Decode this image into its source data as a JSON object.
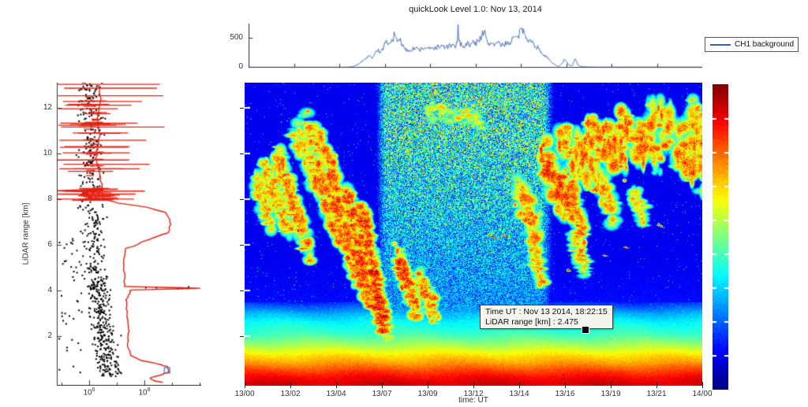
{
  "title": "quickLook Level 1.0: Nov 13, 2014",
  "top_chart": {
    "legend": "CH1 background",
    "yticks": [
      "0",
      "500"
    ],
    "line_color": "#3a5fb0"
  },
  "left_chart": {
    "ylabel": "LiDAR range [km]",
    "ytick_values": [
      "2",
      "4",
      "6",
      "8",
      "10",
      "12"
    ],
    "xticks": [
      {
        "base": "10",
        "exp": "6"
      },
      {
        "base": "10",
        "exp": "8"
      }
    ],
    "dot_color": "#000000",
    "profile_color": "#e82010",
    "marker_color": "#5577cc"
  },
  "heatmap": {
    "xlabel": "time: UT",
    "xtick_labels": [
      "13/00",
      "13/02",
      "13/04",
      "13/07",
      "13/09",
      "13/12",
      "13/14",
      "13/16",
      "13/19",
      "13/21",
      "14/00"
    ],
    "tooltip": {
      "line1": "Time UT : Nov 13 2014, 18:22:15",
      "line2": "LiDAR range [km] : 2.475"
    }
  },
  "colorbar": {
    "colormap": "jet"
  },
  "chart_data": [
    {
      "type": "line",
      "title": "quickLook Level 1.0: Nov 13, 2014",
      "legend": [
        "CH1 background"
      ],
      "x_unit": "hours UT starting Nov 13 2014 00:00",
      "x_range_hours": [
        0,
        24
      ],
      "yticks": [
        0,
        500
      ],
      "ylim": [
        0,
        800
      ],
      "grid": false,
      "legend_position": "outside-right",
      "points_t_v": [
        [
          0,
          2
        ],
        [
          5.2,
          2
        ],
        [
          5.5,
          12
        ],
        [
          5.8,
          55
        ],
        [
          6.1,
          140
        ],
        [
          6.35,
          200
        ],
        [
          6.5,
          160
        ],
        [
          6.65,
          240
        ],
        [
          6.8,
          300
        ],
        [
          6.95,
          250
        ],
        [
          7.1,
          330
        ],
        [
          7.25,
          420
        ],
        [
          7.4,
          370
        ],
        [
          7.55,
          450
        ],
        [
          7.7,
          555
        ],
        [
          7.8,
          480
        ],
        [
          7.9,
          430
        ],
        [
          8.0,
          520
        ],
        [
          8.1,
          380
        ],
        [
          8.25,
          300
        ],
        [
          8.4,
          290
        ],
        [
          8.6,
          310
        ],
        [
          8.8,
          330
        ],
        [
          9.0,
          300
        ],
        [
          9.2,
          320
        ],
        [
          9.4,
          340
        ],
        [
          9.6,
          310
        ],
        [
          9.8,
          330
        ],
        [
          10.0,
          345
        ],
        [
          10.2,
          360
        ],
        [
          10.4,
          340
        ],
        [
          10.6,
          365
        ],
        [
          10.8,
          350
        ],
        [
          10.95,
          380
        ],
        [
          11.02,
          420
        ],
        [
          11.06,
          730
        ],
        [
          11.12,
          430
        ],
        [
          11.25,
          390
        ],
        [
          11.4,
          360
        ],
        [
          11.55,
          410
        ],
        [
          11.7,
          380
        ],
        [
          11.85,
          440
        ],
        [
          12.0,
          400
        ],
        [
          12.15,
          480
        ],
        [
          12.3,
          530
        ],
        [
          12.45,
          640
        ],
        [
          12.55,
          450
        ],
        [
          12.7,
          390
        ],
        [
          12.85,
          430
        ],
        [
          13.0,
          400
        ],
        [
          13.15,
          420
        ],
        [
          13.3,
          390
        ],
        [
          13.45,
          360
        ],
        [
          13.6,
          440
        ],
        [
          13.75,
          400
        ],
        [
          13.9,
          470
        ],
        [
          14.05,
          520
        ],
        [
          14.2,
          480
        ],
        [
          14.35,
          610
        ],
        [
          14.5,
          640
        ],
        [
          14.65,
          560
        ],
        [
          14.8,
          470
        ],
        [
          15.0,
          420
        ],
        [
          15.2,
          360
        ],
        [
          15.4,
          290
        ],
        [
          15.6,
          220
        ],
        [
          15.8,
          150
        ],
        [
          16.0,
          90
        ],
        [
          16.2,
          40
        ],
        [
          16.4,
          15
        ],
        [
          16.55,
          70
        ],
        [
          16.7,
          130
        ],
        [
          16.9,
          40
        ],
        [
          17.1,
          25
        ],
        [
          17.25,
          150
        ],
        [
          17.4,
          40
        ],
        [
          17.6,
          10
        ],
        [
          18.0,
          4
        ],
        [
          24,
          3
        ]
      ]
    },
    {
      "type": "scatter",
      "ylabel": "LiDAR range [km]",
      "ylim_km": [
        0,
        13.4
      ],
      "x_scale": "log10",
      "xtick_values": [
        1000000,
        100000000
      ],
      "black_dots": {
        "description": "raw signal samples",
        "count": 700,
        "log10_center_high_alt": 6.03,
        "log10_center_mid_alt": 6.22,
        "log10_center_low_alt": 6.6,
        "log10_spread": 0.4
      },
      "red_errorbars": {
        "z_range_km": [
          7.9,
          13.2
        ],
        "count": 42,
        "log10_center": 6.2
      },
      "red_profile_z_log10": [
        [
          13.0,
          6.35
        ],
        [
          12.4,
          6.42
        ],
        [
          11.5,
          6.3
        ],
        [
          10.8,
          6.38
        ],
        [
          10.2,
          6.28
        ],
        [
          9.8,
          6.26
        ],
        [
          9.2,
          6.36
        ],
        [
          8.8,
          6.42
        ],
        [
          8.45,
          6.49
        ],
        [
          8.37,
          4.8
        ],
        [
          8.3,
          6.45
        ],
        [
          8.0,
          6.54
        ],
        [
          7.83,
          7.05
        ],
        [
          7.66,
          8.05
        ],
        [
          7.41,
          8.77
        ],
        [
          7.1,
          8.92
        ],
        [
          6.9,
          8.94
        ],
        [
          6.55,
          8.89
        ],
        [
          6.38,
          8.49
        ],
        [
          6.1,
          7.86
        ],
        [
          5.97,
          7.69
        ],
        [
          5.83,
          7.29
        ],
        [
          5.4,
          7.27
        ],
        [
          5.0,
          7.26
        ],
        [
          4.5,
          7.28
        ],
        [
          4.18,
          7.29
        ],
        [
          4.1,
          10.05
        ],
        [
          4.02,
          7.49
        ],
        [
          3.86,
          7.46
        ],
        [
          3.6,
          7.34
        ],
        [
          3.2,
          7.36
        ],
        [
          2.9,
          7.37
        ],
        [
          2.5,
          7.41
        ],
        [
          2.2,
          7.43
        ],
        [
          1.9,
          7.4
        ],
        [
          1.55,
          7.4
        ],
        [
          1.14,
          7.51
        ],
        [
          0.93,
          7.91
        ],
        [
          0.79,
          8.49
        ],
        [
          0.66,
          8.83
        ],
        [
          0.45,
          8.89
        ],
        [
          0.31,
          8.63
        ],
        [
          0.17,
          8.2
        ],
        [
          0.05,
          8.34
        ],
        [
          -0.05,
          8.77
        ]
      ],
      "blue_square_marker": {
        "log10": 8.82,
        "z_km": 0.5
      }
    },
    {
      "type": "heatmap",
      "xlabel": "time: UT",
      "x_range": [
        "13/00",
        "14/00"
      ],
      "xtick_labels": [
        "13/00",
        "13/02",
        "13/04",
        "13/07",
        "13/09",
        "13/12",
        "13/14",
        "13/16",
        "13/19",
        "13/21",
        "14/00"
      ],
      "ylim_km": [
        0,
        13.3
      ],
      "colormap": "jet",
      "day_noise": {
        "t0": 6.6,
        "t1": 15.5,
        "rise_h": 0.9,
        "fall_h": 1.0
      },
      "boundary_layer_stops_z_v": [
        [
          3.5,
          0.16
        ],
        [
          3.0,
          0.3
        ],
        [
          2.6,
          0.38
        ],
        [
          2.1,
          0.44
        ],
        [
          1.8,
          0.5
        ],
        [
          1.45,
          0.58
        ],
        [
          1.15,
          0.66
        ],
        [
          0.85,
          0.72
        ],
        [
          0.55,
          0.8
        ],
        [
          0.25,
          0.87
        ],
        [
          0.0,
          0.91
        ]
      ],
      "clouds_t0_z0_t1_z1_w_i_d": [
        [
          0.6,
          8.8,
          1.3,
          7.0,
          0.7,
          0.8,
          1
        ],
        [
          1.0,
          9.4,
          2.3,
          6.6,
          0.7,
          0.85,
          1
        ],
        [
          1.7,
          9.9,
          3.3,
          5.8,
          0.8,
          0.9,
          1
        ],
        [
          2.6,
          10.9,
          3.7,
          9.3,
          0.8,
          0.8,
          1
        ],
        [
          3.2,
          11.3,
          4.7,
          9.1,
          0.9,
          0.9,
          1
        ],
        [
          3.5,
          9.4,
          5.3,
          6.2,
          0.8,
          0.9,
          1
        ],
        [
          4.5,
          9.0,
          5.9,
          4.6,
          0.8,
          0.92,
          1
        ],
        [
          5.3,
          8.4,
          6.5,
          3.6,
          0.7,
          0.95,
          1
        ],
        [
          6.1,
          7.6,
          7.1,
          3.0,
          0.6,
          0.95,
          1
        ],
        [
          6.7,
          5.0,
          7.35,
          2.4,
          0.45,
          1.0,
          1.2
        ],
        [
          7.35,
          3.4,
          7.5,
          1.8,
          0.3,
          0.7,
          0.8
        ],
        [
          8.0,
          5.6,
          9.0,
          3.0,
          0.65,
          0.95,
          1
        ],
        [
          9.1,
          4.7,
          10.0,
          2.9,
          0.55,
          0.9,
          1
        ],
        [
          9.7,
          11.9,
          12.4,
          11.4,
          0.5,
          0.78,
          0.35
        ],
        [
          14.3,
          8.5,
          15.3,
          6.6,
          0.9,
          0.88,
          1
        ],
        [
          15.6,
          9.7,
          17.0,
          7.7,
          1.3,
          0.95,
          1
        ],
        [
          16.4,
          10.5,
          18.3,
          9.2,
          1.3,
          0.9,
          1
        ],
        [
          16.9,
          8.8,
          17.7,
          6.5,
          0.8,
          0.9,
          1
        ],
        [
          18.0,
          11.0,
          20.0,
          9.6,
          1.2,
          0.9,
          1
        ],
        [
          18.5,
          9.0,
          19.3,
          7.5,
          0.8,
          0.85,
          1
        ],
        [
          19.7,
          11.2,
          21.7,
          9.9,
          1.2,
          0.9,
          1
        ],
        [
          21.3,
          11.5,
          23.9,
          10.1,
          1.3,
          0.9,
          1
        ],
        [
          22.7,
          10.1,
          23.9,
          9.1,
          1.0,
          0.85,
          1
        ],
        [
          23.4,
          11.9,
          23.95,
          10.9,
          0.8,
          0.85,
          1
        ],
        [
          20.4,
          8.4,
          20.9,
          7.1,
          0.5,
          0.8,
          0.8
        ],
        [
          15.0,
          6.4,
          15.5,
          4.5,
          0.5,
          0.85,
          0.9
        ],
        [
          17.3,
          6.3,
          17.8,
          4.9,
          0.5,
          0.85,
          0.9
        ]
      ],
      "red_specks_t_z": [
        [
          7.1,
          3.1
        ],
        [
          7.2,
          2.7
        ],
        [
          7.3,
          2.45
        ],
        [
          12.85,
          6.45
        ],
        [
          13.05,
          6.35
        ],
        [
          13.3,
          6.3
        ],
        [
          13.55,
          6.45
        ],
        [
          13.75,
          6.4
        ],
        [
          16.95,
          4.9
        ],
        [
          18.85,
          5.55
        ],
        [
          19.95,
          5.9
        ],
        [
          21.7,
          6.9
        ],
        [
          21.85,
          6.82
        ],
        [
          15.8,
          3.0
        ]
      ],
      "datatip": {
        "time": "Nov 13 2014, 18:22:15",
        "range_km": 2.475
      }
    }
  ]
}
